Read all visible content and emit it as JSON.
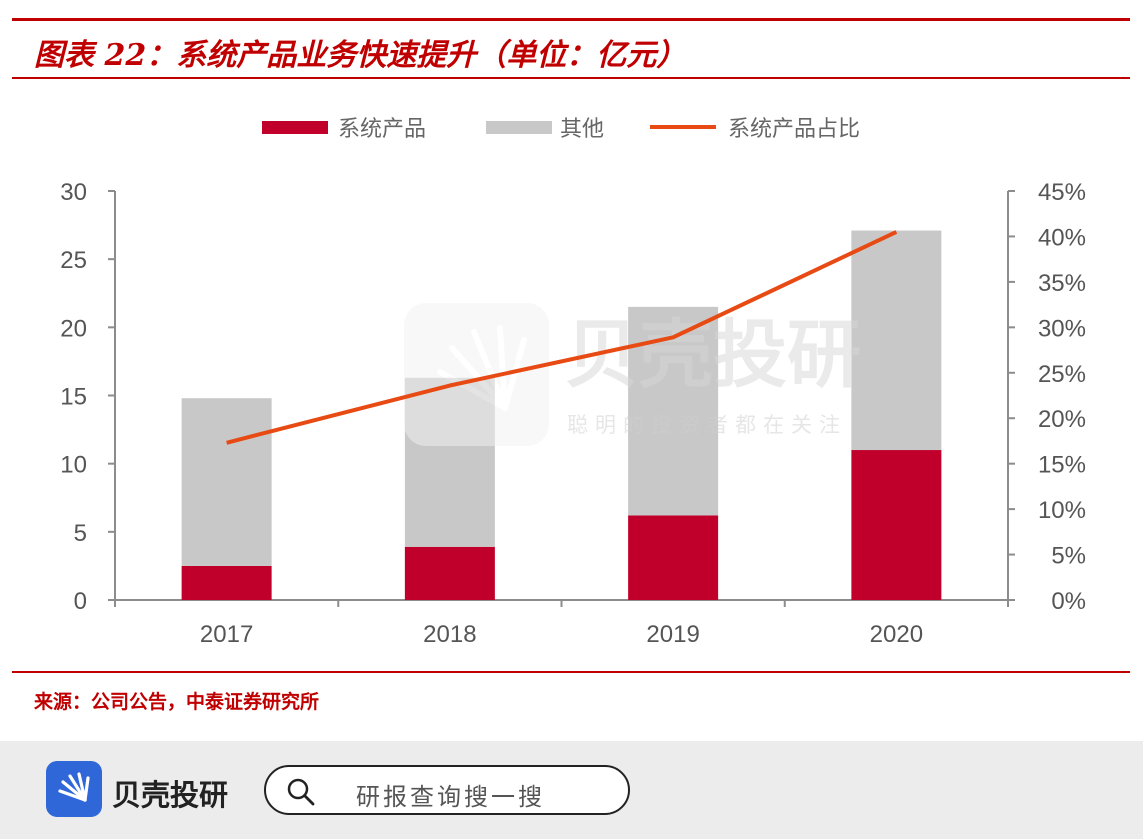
{
  "header": {
    "title": "图表 22：系统产品业务快速提升（单位：亿元）"
  },
  "chart_data": {
    "type": "bar",
    "stacked": true,
    "categories": [
      "2017",
      "2018",
      "2019",
      "2020"
    ],
    "series": [
      {
        "name": "系统产品",
        "type": "bar",
        "axis": "left",
        "color": "#c0002b",
        "values": [
          2.5,
          3.9,
          6.2,
          11.0
        ]
      },
      {
        "name": "其他",
        "type": "bar",
        "axis": "left",
        "color": "#c8c8c8",
        "values": [
          12.3,
          12.4,
          15.3,
          16.1
        ]
      },
      {
        "name": "系统产品占比",
        "type": "line",
        "axis": "right",
        "color": "#e84a13",
        "values": [
          17.3,
          23.6,
          28.9,
          40.5
        ]
      }
    ],
    "left_axis": {
      "ylim": [
        0,
        30
      ],
      "ticks": [
        "0",
        "5",
        "10",
        "15",
        "20",
        "25",
        "30"
      ]
    },
    "right_axis": {
      "ylim": [
        0,
        45
      ],
      "ticks": [
        "0%",
        "5%",
        "10%",
        "15%",
        "20%",
        "25%",
        "30%",
        "35%",
        "40%",
        "45%"
      ]
    },
    "legend": {
      "position": "top"
    },
    "grid": false
  },
  "watermark": {
    "brand": "贝壳投研",
    "slogan": "聪明的投资者都在关注"
  },
  "footer": {
    "source": "来源：公司公告，中泰证券研究所",
    "logo_text": "贝壳投研",
    "search_placeholder": "研报查询搜一搜"
  }
}
